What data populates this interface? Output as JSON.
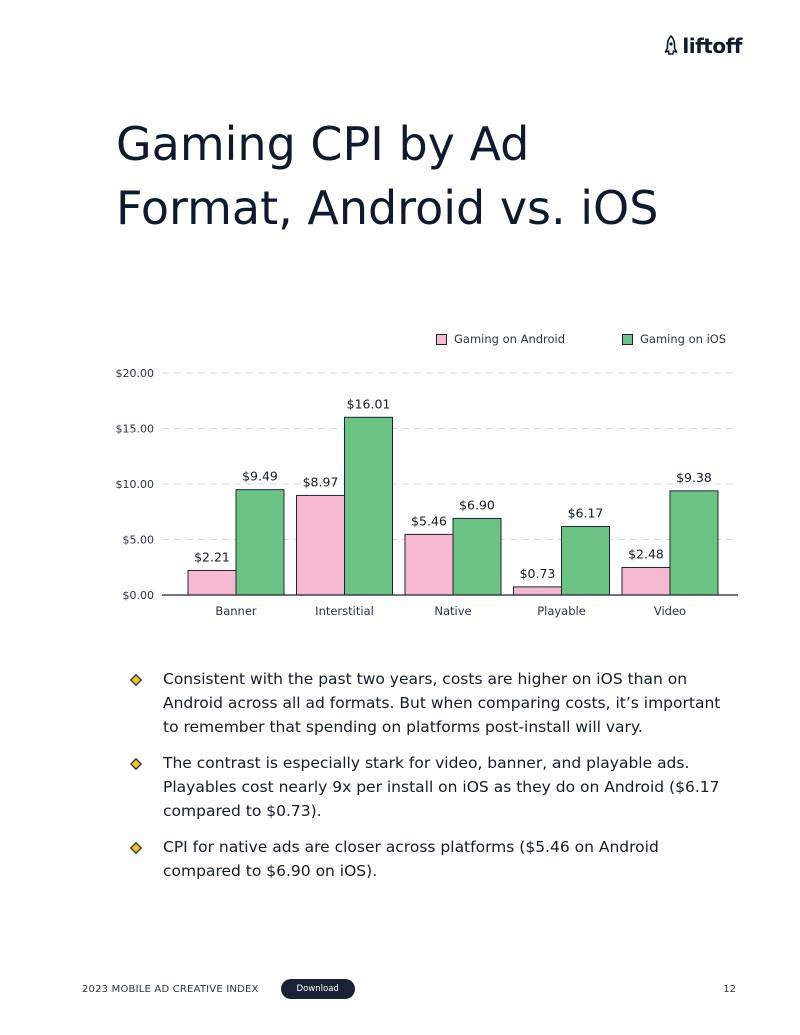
{
  "brand": {
    "logo_text": "liftoff"
  },
  "page": {
    "title": "Gaming CPI by Ad Format, Android vs. iOS"
  },
  "legend": {
    "android_label": "Gaming on Android",
    "ios_label": "Gaming on iOS"
  },
  "colors": {
    "android": "#f7b9d0",
    "ios": "#6cc484",
    "bar_stroke": "#1c2433",
    "diamond_fill": "#f3c21c",
    "grid": "#d6d9e0"
  },
  "chart_data": {
    "type": "bar",
    "categories": [
      "Banner",
      "Interstitial",
      "Native",
      "Playable",
      "Video"
    ],
    "series": [
      {
        "name": "Gaming on Android",
        "values": [
          2.21,
          8.97,
          5.46,
          0.73,
          2.48
        ],
        "labels": [
          "$2.21",
          "$8.97",
          "$5.46",
          "$0.73",
          "$2.48"
        ]
      },
      {
        "name": "Gaming on iOS",
        "values": [
          9.49,
          16.01,
          6.9,
          6.17,
          9.38
        ],
        "labels": [
          "$9.49",
          "$16.01",
          "$6.90",
          "$6.17",
          "$9.38"
        ]
      }
    ],
    "y_ticks": [
      0,
      5,
      10,
      15,
      20
    ],
    "y_tick_labels": [
      "$0.00",
      "$5.00",
      "$10.00",
      "$15.00",
      "$20.00"
    ],
    "ylim": [
      0,
      20
    ],
    "grid": true,
    "grid_style": "dashed",
    "legend_position": "top-right"
  },
  "bullets": [
    "Consistent with the past two years, costs are higher on iOS than on Android across all ad formats. But when comparing costs, it’s important to remember that spending on platforms post-install will vary.",
    "The contrast is especially stark for video, banner, and playable ads. Playables cost nearly 9x per install on iOS as they do on Android ($6.17 compared to $0.73).",
    "CPI for native ads are closer across platforms ($5.46 on Android compared to $6.90 on iOS)."
  ],
  "footer": {
    "index_title": "2023 MOBILE AD CREATIVE INDEX",
    "download_label": "Download",
    "page_number": "12"
  }
}
